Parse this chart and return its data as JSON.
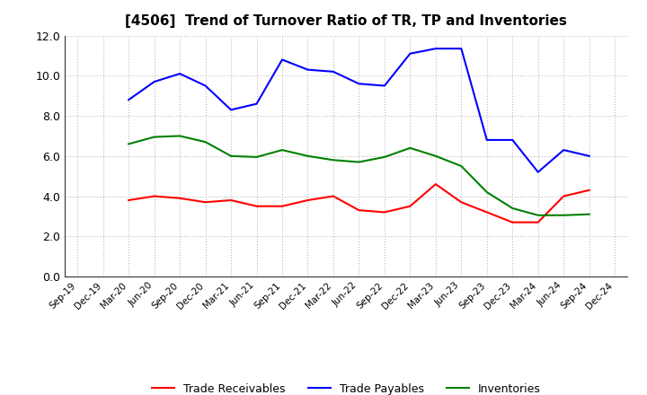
{
  "title": "[4506]  Trend of Turnover Ratio of TR, TP and Inventories",
  "x_labels": [
    "Sep-19",
    "Dec-19",
    "Mar-20",
    "Jun-20",
    "Sep-20",
    "Dec-20",
    "Mar-21",
    "Jun-21",
    "Sep-21",
    "Dec-21",
    "Mar-22",
    "Jun-22",
    "Sep-22",
    "Dec-22",
    "Mar-23",
    "Jun-23",
    "Sep-23",
    "Dec-23",
    "Mar-24",
    "Jun-24",
    "Sep-24",
    "Dec-24"
  ],
  "trade_receivables": [
    null,
    null,
    3.8,
    4.0,
    3.9,
    3.7,
    3.8,
    3.5,
    3.5,
    3.8,
    4.0,
    3.3,
    3.2,
    3.5,
    4.6,
    3.7,
    3.2,
    2.7,
    2.7,
    4.0,
    4.3,
    null
  ],
  "trade_payables": [
    null,
    null,
    8.8,
    9.7,
    10.1,
    9.5,
    8.3,
    8.6,
    10.8,
    10.3,
    10.2,
    9.6,
    9.5,
    11.1,
    11.35,
    11.35,
    6.8,
    6.8,
    5.2,
    6.3,
    6.0,
    null
  ],
  "inventories": [
    null,
    null,
    6.6,
    6.95,
    7.0,
    6.7,
    6.0,
    5.95,
    6.3,
    6.0,
    5.8,
    5.7,
    5.95,
    6.4,
    6.0,
    5.5,
    4.2,
    3.4,
    3.05,
    3.05,
    3.1,
    null
  ],
  "ylim": [
    0.0,
    12.0
  ],
  "yticks": [
    0.0,
    2.0,
    4.0,
    6.0,
    8.0,
    10.0,
    12.0
  ],
  "colors": {
    "trade_receivables": "#FF0000",
    "trade_payables": "#0000FF",
    "inventories": "#008000"
  },
  "legend_labels": [
    "Trade Receivables",
    "Trade Payables",
    "Inventories"
  ],
  "background_color": "#FFFFFF",
  "grid_color": "#BBBBBB"
}
